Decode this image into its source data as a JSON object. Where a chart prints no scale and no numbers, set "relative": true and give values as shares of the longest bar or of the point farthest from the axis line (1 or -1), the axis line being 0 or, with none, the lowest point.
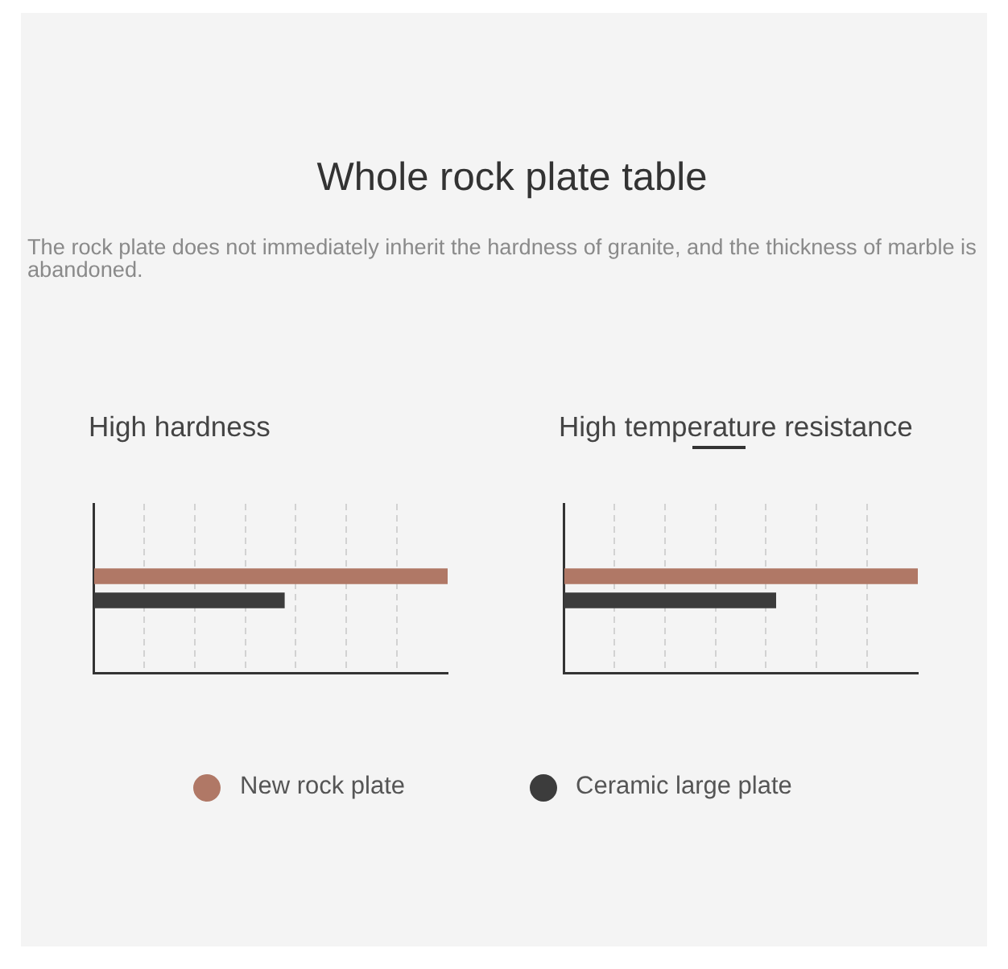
{
  "chart_data": [
    {
      "type": "other",
      "title": "Whole rock plate table",
      "subtitle": "The rock plate does not immediately inherit the hardness of granite, and the thickness of marble is abandoned."
    },
    {
      "type": "bar",
      "orientation": "horizontal",
      "title": "High hardness",
      "categories": [
        null
      ],
      "relative": true,
      "grid": "x",
      "legend": "bottom",
      "series": [
        {
          "name": "New rock plate",
          "color": "#b07866",
          "values": [
            1
          ]
        },
        {
          "name": "Ceramic large plate",
          "color": "#3c3c3c",
          "values": [
            0.54
          ]
        }
      ]
    },
    {
      "type": "bar",
      "orientation": "horizontal",
      "title": "High temperature resistance",
      "categories": [
        null
      ],
      "relative": true,
      "grid": "x",
      "legend": "bottom",
      "series": [
        {
          "name": "New rock plate",
          "color": "#b07866",
          "values": [
            1
          ]
        },
        {
          "name": "Ceramic large plate",
          "color": "#3c3c3c",
          "values": [
            0.6
          ]
        }
      ]
    }
  ]
}
